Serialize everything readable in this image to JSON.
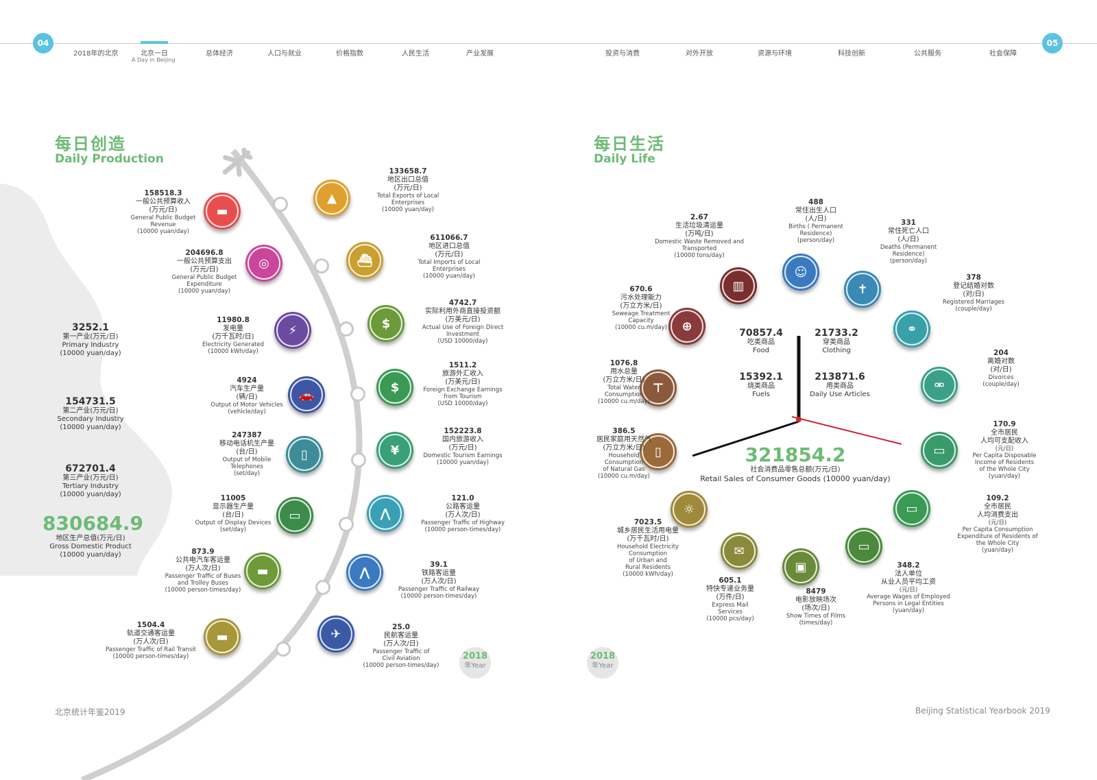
{
  "header": {
    "left_page": "04",
    "right_page": "05",
    "nav": [
      {
        "label": "2018年的北京"
      },
      {
        "label": "北京一日",
        "sub": "A Day in Beijing"
      },
      {
        "label": "总体经济"
      },
      {
        "label": "人口与就业"
      },
      {
        "label": "价格指数"
      },
      {
        "label": "人民生活"
      },
      {
        "label": "产业发展"
      },
      {
        "label": "投资与消费"
      },
      {
        "label": "对外开放"
      },
      {
        "label": "资源与环境"
      },
      {
        "label": "科技创新"
      },
      {
        "label": "公共服务"
      },
      {
        "label": "社会保障"
      }
    ]
  },
  "colors": {
    "accent": "#6dbb75",
    "page_badge": "#5ac3e0",
    "track": "#c9c9c9"
  },
  "production": {
    "title_cn": "每日创造",
    "title_en": "Daily Production",
    "gdp": {
      "value": "830684.9",
      "cn": "地区生产总值(万元/日)",
      "en": "Gross Domestic Product",
      "unit": "(10000 yuan/day)"
    },
    "industries": [
      {
        "value": "3252.1",
        "cn": "第一产业(万元/日)",
        "en": "Primary Industry",
        "unit": "(10000 yuan/day)"
      },
      {
        "value": "154731.5",
        "cn": "第二产业(万元/日)",
        "en": "Secondary Industry",
        "unit": "(10000 yuan/day)"
      },
      {
        "value": "672701.4",
        "cn": "第三产业(万元/日)",
        "en": "Tertiary Industry",
        "unit": "(10000 yuan/day)"
      }
    ],
    "left_items": [
      {
        "value": "158518.3",
        "cn": "一般公共预算收入",
        "cn2": "(万元/日)",
        "en": "General Public Budget",
        "en2": "Revenue",
        "unit": "(10000 yuan/day)",
        "icon": "money-stack-icon",
        "color": "#e94e4e",
        "glyph": "▬"
      },
      {
        "value": "204696.8",
        "cn": "一般公共预算支出",
        "cn2": "(万元/日)",
        "en": "General Public Budget",
        "en2": "Expenditure",
        "unit": "(10000 yuan/day)",
        "icon": "coins-icon",
        "color": "#c9479b",
        "glyph": "◎"
      },
      {
        "value": "11980.8",
        "cn": "发电量",
        "cn2": "(万千瓦时/日)",
        "en": "Electricity Generated",
        "en2": "",
        "unit": "(10000 kWh/day)",
        "icon": "plug-icon",
        "color": "#6a4ba0",
        "glyph": "⚡"
      },
      {
        "value": "4924",
        "cn": "汽车生产量",
        "cn2": "(辆/日)",
        "en": "Output of Motor Vehicles",
        "en2": "",
        "unit": "(vehicle/day)",
        "icon": "car-icon",
        "color": "#3e56a6",
        "glyph": "🚗"
      },
      {
        "value": "247387",
        "cn": "移动电话机生产量",
        "cn2": "(台/日)",
        "en": "Output of Mobile",
        "en2": "Telephones",
        "unit": "(set/day)",
        "icon": "mobile-phone-icon",
        "color": "#3d8c97",
        "glyph": "▯"
      },
      {
        "value": "11005",
        "cn": "显示器生产量",
        "cn2": "(台/日)",
        "en": "Output of Display Devices",
        "en2": "",
        "unit": "(set/day)",
        "icon": "laptop-icon",
        "color": "#3c8b4a",
        "glyph": "▭"
      },
      {
        "value": "873.9",
        "cn": "公共电汽车客运量",
        "cn2": "(万人次/日)",
        "en": "Passenger Traffic of Buses",
        "en2": "and Trolley Buses",
        "unit": "(10000 person-times/day)",
        "icon": "bus-icon",
        "color": "#6e9a3a",
        "glyph": "▬"
      },
      {
        "value": "1504.4",
        "cn": "轨道交通客运量",
        "cn2": "(万人次/日)",
        "en": "Passenger Traffic of Rail Transit",
        "en2": "",
        "unit": "(10000 person-times/day)",
        "icon": "train-icon",
        "color": "#a8973a",
        "glyph": "▬"
      }
    ],
    "right_items": [
      {
        "value": "133658.7",
        "cn": "地区出口总值",
        "cn2": "(万元/日)",
        "en": "Total Exports of Local",
        "en2": "Enterprises",
        "unit": "(10000 yuan/day)",
        "icon": "cargo-export-icon",
        "color": "#e0a030",
        "glyph": "▲"
      },
      {
        "value": "611066.7",
        "cn": "地区进口总值",
        "cn2": "(万元/日)",
        "en": "Total Imports of Local",
        "en2": "Enterprises",
        "unit": "(10000 yuan/day)",
        "icon": "ship-icon",
        "color": "#c9a030",
        "glyph": "⛴"
      },
      {
        "value": "4742.7",
        "cn": "实际利用外商直接投资额",
        "cn2": "(万美元/日)",
        "en": "Actual Use of Foreign Direct",
        "en2": "Investment",
        "unit": "(USD 10000/day)",
        "icon": "cash-hand-icon",
        "color": "#6a9a3a",
        "glyph": "$"
      },
      {
        "value": "1511.2",
        "cn": "旅游外汇收入",
        "cn2": "(万美元/日)",
        "en": "Foreign Exchange Earnings",
        "en2": "from Tourism",
        "unit": "(USD 10000/day)",
        "icon": "dollar-icon",
        "color": "#3a9a55",
        "glyph": "$"
      },
      {
        "value": "152223.8",
        "cn": "国内旅游收入",
        "cn2": "(万元/日)",
        "en": "Domestic Tourism Earnings",
        "en2": "",
        "unit": "(10000 yuan/day)",
        "icon": "yuan-icon",
        "color": "#3aa07a",
        "glyph": "¥"
      },
      {
        "value": "121.0",
        "cn": "公路客运量",
        "cn2": "(万人次/日)",
        "en": "Passenger Traffic of Highway",
        "en2": "",
        "unit": "(10000 person-times/day)",
        "icon": "highway-icon",
        "color": "#3aa0b5",
        "glyph": "⋀"
      },
      {
        "value": "39.1",
        "cn": "铁路客运量",
        "cn2": "(万人次/日)",
        "en": "Passenger Traffic of Railway",
        "en2": "",
        "unit": "(10000 person-times/day)",
        "icon": "railway-icon",
        "color": "#3a7ac0",
        "glyph": "⋀"
      },
      {
        "value": "25.0",
        "cn": "民航客运量",
        "cn2": "(万人次/日)",
        "en": "Passenger Traffic of",
        "en2": "Civil Aviation",
        "unit": "(10000 person-times/day)",
        "icon": "airplane-icon",
        "color": "#3a5aa8",
        "glyph": "✈"
      }
    ],
    "badge": {
      "year": "2018",
      "text": "年Year"
    }
  },
  "life": {
    "title_cn": "每日生活",
    "title_en": "Daily Life",
    "total": {
      "value": "321854.2",
      "cn": "社会消费品零售总额(万元/日)",
      "en": "Retail Sales of Consumer Goods (10000 yuan/day)"
    },
    "center": [
      {
        "value": "70857.4",
        "cn": "吃类商品",
        "en": "Food"
      },
      {
        "value": "21733.2",
        "cn": "穿类商品",
        "en": "Clothing"
      },
      {
        "value": "15392.1",
        "cn": "烧类商品",
        "en": "Fuels"
      },
      {
        "value": "213871.6",
        "cn": "用类商品",
        "en": "Daily Use Articles"
      }
    ],
    "items": [
      {
        "value": "488",
        "l1": "常住出生人口",
        "l2": "(人/日)",
        "l3": "Births ( Permanent",
        "l4": "Residence)",
        "l5": "(person/day)",
        "icon": "baby-icon",
        "color": "#3a7ac0",
        "glyph": "☺"
      },
      {
        "value": "331",
        "l1": "常住死亡人口",
        "l2": "(人/日)",
        "l3": "Deaths (Permanent",
        "l4": "Residence)",
        "l5": "(person/day)",
        "icon": "cross-icon",
        "color": "#3a8ab5",
        "glyph": "✝"
      },
      {
        "value": "378",
        "l1": "登记结婚对数",
        "l2": "(对/日)",
        "l3": "Registered Marriages",
        "l4": "(couple/day)",
        "l5": "",
        "icon": "couple-icon",
        "color": "#3aa0a8",
        "glyph": "⚭"
      },
      {
        "value": "204",
        "l1": "离婚对数",
        "l2": "(对/日)",
        "l3": "Divorces",
        "l4": "(couple/day)",
        "l5": "",
        "icon": "divorce-icon",
        "color": "#3aa08a",
        "glyph": "⚮"
      },
      {
        "value": "170.9",
        "l1": "全市居民",
        "l2": "人均可支配收入",
        "l3": "(元/日)",
        "l4": "Per Capita Disposable",
        "l5": "Income of Residents",
        "l6": "of the Whole City",
        "l7": "(yuan/day)",
        "icon": "card-in-icon",
        "color": "#3a9a6a",
        "glyph": "▭"
      },
      {
        "value": "109.2",
        "l1": "全市居民",
        "l2": "人均消费支出",
        "l3": "(元/日)",
        "l4": "Per Capita Consumption",
        "l5": "Expenditure of Residents of",
        "l6": "the Whole City",
        "l7": "(yuan/day)",
        "icon": "card-out-icon",
        "color": "#3a9a55",
        "glyph": "▭"
      },
      {
        "value": "348.2",
        "l1": "法人单位",
        "l2": "从业人员平均工资",
        "l3": "(元/日)",
        "l4": "Average Wages of Employed",
        "l5": "Persons in  Legal Entities",
        "l6": "(yuan/day)",
        "icon": "wage-card-icon",
        "color": "#4a8a3a",
        "glyph": "▭"
      },
      {
        "value": "8479",
        "l1": "电影放映场次",
        "l2": "(场次/日)",
        "l3": "Show Times of Films",
        "l4": "(times/day)",
        "icon": "projector-icon",
        "color": "#6a8a3a",
        "glyph": "▣"
      },
      {
        "value": "605.1",
        "l1": "特快专递业务量",
        "l2": "(万件/日)",
        "l3": "Express Mail",
        "l4": "Services",
        "l5": "(10000 pcs/day)",
        "icon": "mail-icon",
        "color": "#8a8a3a",
        "glyph": "✉"
      },
      {
        "value": "7023.5",
        "l1": "城乡居民生活用电量",
        "l2": "(万千瓦时/日)",
        "l3": "Household Electricity",
        "l4": "Consumption",
        "l5": "of Urban and",
        "l6": "Rural Residents",
        "l7": "(10000 kWh/day)",
        "icon": "lamp-icon",
        "color": "#a08a3a",
        "glyph": "☼"
      },
      {
        "value": "386.5",
        "l1": "居民家庭用天然气",
        "l2": "(万立方米/日)",
        "l3": "Household",
        "l4": "Consumption",
        "l5": "of Natural Gas",
        "l6": "(10000 cu.m/day)",
        "icon": "gas-tank-icon",
        "color": "#9a6a3a",
        "glyph": "▯"
      },
      {
        "value": "1076.8",
        "l1": "用水总量",
        "l2": "(万立方米/日)",
        "l3": "Total Water",
        "l4": "Consumption",
        "l5": "(10000 cu.m/day)",
        "icon": "faucet-icon",
        "color": "#8a5a3a",
        "glyph": "⊤"
      },
      {
        "value": "670.6",
        "l1": "污水处理能力",
        "l2": "(万立方米/日)",
        "l3": "Seweage Treatment",
        "l4": "Capacity",
        "l5": "(10000 cu.m/day)",
        "icon": "valve-icon",
        "color": "#8a3a3a",
        "glyph": "⊕"
      },
      {
        "value": "2.67",
        "l1": "生活垃圾清运量",
        "l2": "(万吨/日)",
        "l3": "Domestic Waste Removed and",
        "l4": "Transported",
        "l5": "(10000 tons/day)",
        "icon": "trash-icon",
        "color": "#7a2e2e",
        "glyph": "▥"
      }
    ],
    "badge": {
      "year": "2018",
      "text": "年Year"
    }
  },
  "footer": {
    "left": "北京统计年鉴2019",
    "right": "Beijing Statistical Yearbook 2019"
  }
}
